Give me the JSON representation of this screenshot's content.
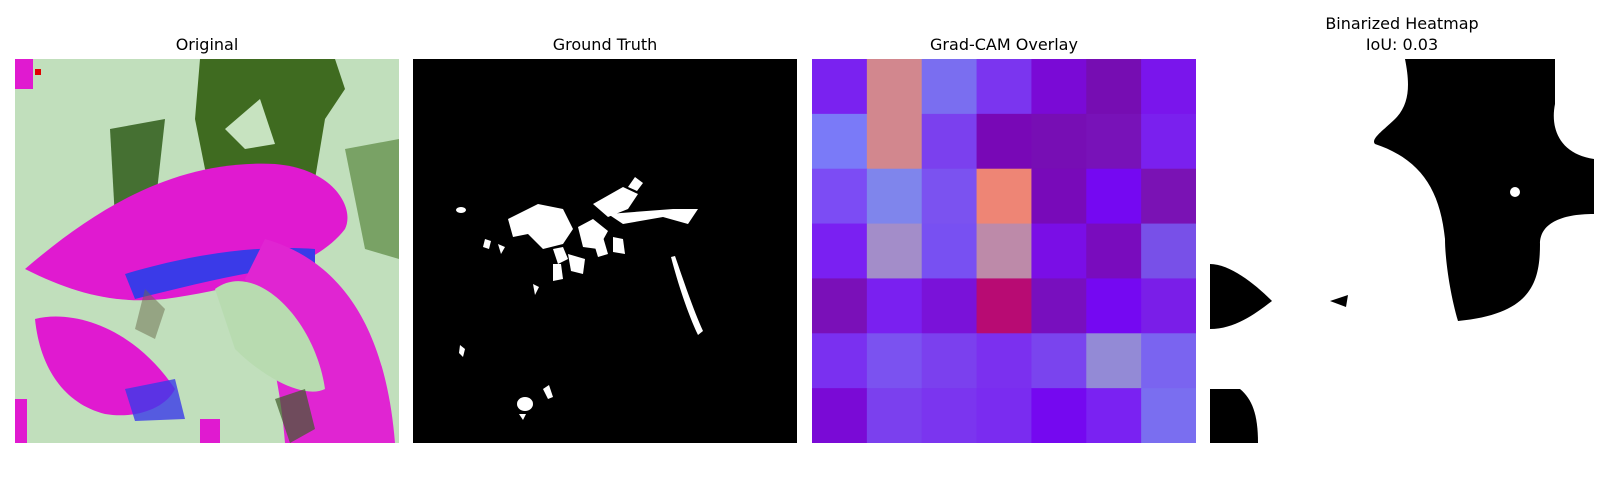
{
  "chart_data": [
    {
      "type": "image",
      "title": "Original"
    },
    {
      "type": "image",
      "title": "Ground Truth"
    },
    {
      "type": "heatmap",
      "title": "Grad-CAM Overlay",
      "rows": 7,
      "cols": 7,
      "cell_colors": [
        [
          "#7a22f0",
          "#d2878e",
          "#7a6ef0",
          "#7b35ef",
          "#7a0ad6",
          "#760db2",
          "#7a15ec"
        ],
        [
          "#7a7af8",
          "#d2878e",
          "#7b40ee",
          "#7808b6",
          "#770eb4",
          "#7812b8",
          "#7a20ee"
        ],
        [
          "#7c4cf4",
          "#7f85ec",
          "#7b52f0",
          "#ee8575",
          "#780ab9",
          "#7508f2",
          "#7a12b4"
        ],
        [
          "#7a20f2",
          "#a38dc9",
          "#7850f2",
          "#bd8aa9",
          "#7a0ee6",
          "#790cbd",
          "#7850e8"
        ],
        [
          "#7a10b8",
          "#7a20f0",
          "#7a12d9",
          "#b80b73",
          "#780fbe",
          "#7508f2",
          "#7a1ee8"
        ],
        [
          "#7a30f0",
          "#7b52f0",
          "#7b40ee",
          "#7b30ef",
          "#7a44ee",
          "#938ad6",
          "#7a64f0"
        ],
        [
          "#7a0ad6",
          "#7b40ee",
          "#7b35ef",
          "#7a2cf0",
          "#7508f0",
          "#7a22f2",
          "#7a6ef0"
        ]
      ]
    },
    {
      "type": "image",
      "title": "Binarized Heatmap",
      "subtitle": "IoU: 0.03",
      "iou": 0.03
    }
  ]
}
